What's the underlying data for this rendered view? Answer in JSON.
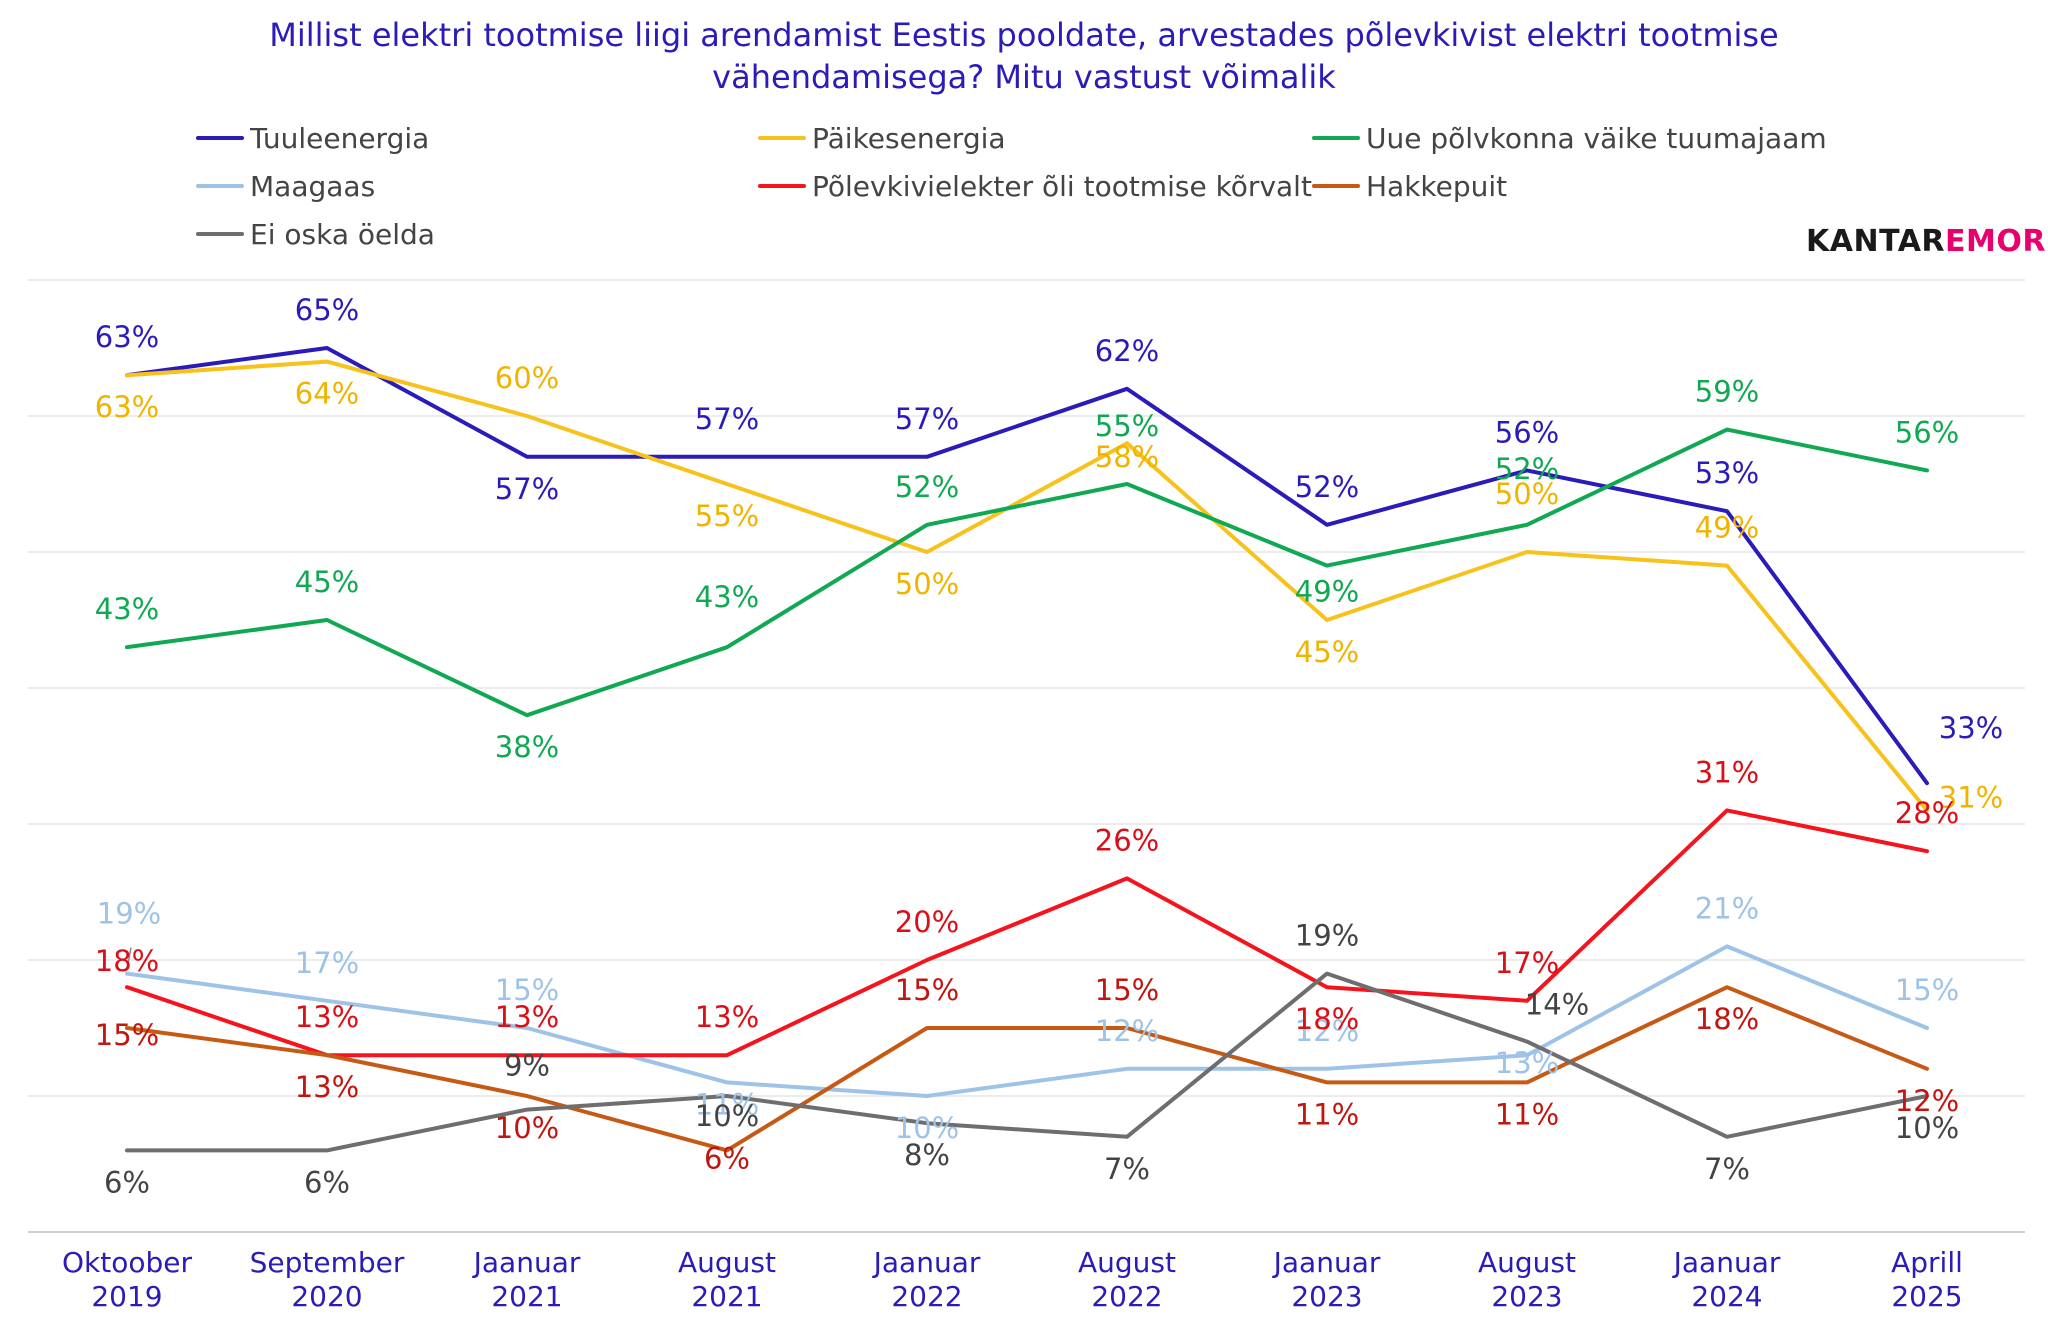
{
  "title_lines": [
    "Millist elektri tootmise liigi arendamist Eestis pooldate, arvestades põlevkivist elektri tootmise",
    "vähendamisega? Mitu vastust võimalik"
  ],
  "brand": {
    "part1": "KANTAR",
    "part2": "EMOR",
    "color1": "#1a1a1a",
    "color2": "#E8006F"
  },
  "chart_data": {
    "type": "line",
    "title": "Millist elektri tootmise liigi arendamist Eestis pooldate, arvestades põlevkivist elektri tootmise vähendamisega? Mitu vastust võimalik",
    "categories": [
      [
        "Oktoober",
        "2019"
      ],
      [
        "September",
        "2020"
      ],
      [
        "Jaanuar",
        "2021"
      ],
      [
        "August",
        "2021"
      ],
      [
        "Jaanuar",
        "2022"
      ],
      [
        "August",
        "2022"
      ],
      [
        "Jaanuar",
        "2023"
      ],
      [
        "August",
        "2023"
      ],
      [
        "Jaanuar",
        "2024"
      ],
      [
        "Aprill",
        "2025"
      ]
    ],
    "value_suffix": "%",
    "ylim": [
      0,
      70
    ],
    "grid": "horizontal",
    "legend_position": "top",
    "series": [
      {
        "name": "Tuuleenergia",
        "color": "#2B1BB8",
        "label_color": "#2B1BB8",
        "values": [
          63,
          65,
          57,
          57,
          57,
          62,
          52,
          56,
          53,
          33
        ]
      },
      {
        "name": "Päikesenergia",
        "color": "#F7C21B",
        "label_color": "#F0B400",
        "values": [
          63,
          64,
          60,
          55,
          50,
          58,
          45,
          50,
          49,
          31
        ]
      },
      {
        "name": "Uue põlvkonna väike tuumajaam",
        "color": "#11A853",
        "label_color": "#11A853",
        "values": [
          43,
          45,
          38,
          43,
          52,
          55,
          49,
          52,
          59,
          56
        ]
      },
      {
        "name": "Maagaas",
        "color": "#9EC3E6",
        "label_color": "#9EC3E6",
        "values": [
          19,
          17,
          15,
          11,
          10,
          12,
          12,
          13,
          21,
          15
        ]
      },
      {
        "name": "Põlevkivielekter õli tootmise kõrvalt",
        "color": "#F5141E",
        "label_color": "#D81018",
        "values": [
          18,
          13,
          13,
          13,
          20,
          26,
          18,
          17,
          31,
          28
        ]
      },
      {
        "name": "Hakkepuit",
        "color": "#C65A15",
        "label_color": "#C0160F",
        "values": [
          15,
          13,
          10,
          6,
          15,
          15,
          11,
          11,
          18,
          12
        ]
      },
      {
        "name": "Ei oska öelda",
        "color": "#6E6E6E",
        "label_color": "#444444",
        "values": [
          6,
          6,
          9,
          10,
          8,
          7,
          19,
          14,
          7,
          10
        ]
      }
    ]
  }
}
